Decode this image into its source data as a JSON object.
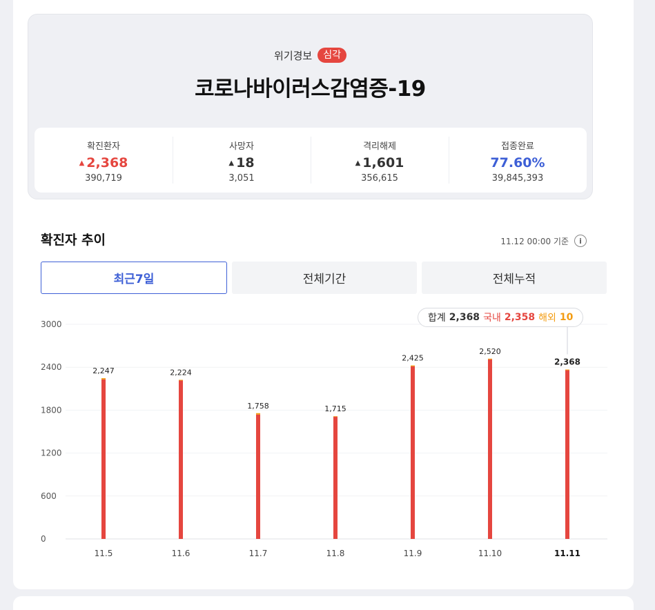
{
  "summary": {
    "alert_label": "위기경보",
    "alert_level": "심각",
    "title": "코로나바이러스감염증-19",
    "stats": [
      {
        "label": "확진환자",
        "delta": "2,368",
        "total": "390,719",
        "color": "#e5463f"
      },
      {
        "label": "사망자",
        "delta": "18",
        "total": "3,051",
        "color": "#333333"
      },
      {
        "label": "격리해제",
        "delta": "1,601",
        "total": "356,615",
        "color": "#333333"
      },
      {
        "label": "접종완료",
        "delta": "77.60%",
        "total": "39,845,393",
        "color": "#3d5fd6"
      }
    ]
  },
  "trend": {
    "title": "확진자 추이",
    "basis": "11.12 00:00 기준",
    "tabs": [
      "최근7일",
      "전체기간",
      "전체누적"
    ],
    "active_tab": 0
  },
  "tooltip": {
    "sum_label": "합계",
    "sum_value": "2,368",
    "domestic_label": "국내",
    "domestic_value": "2,358",
    "overseas_label": "해외",
    "overseas_value": "10"
  },
  "chart_data": {
    "type": "bar",
    "stacked": true,
    "categories": [
      "11.5",
      "11.6",
      "11.7",
      "11.8",
      "11.9",
      "11.10",
      "11.11"
    ],
    "series": [
      {
        "name": "국내",
        "values": [
          2230,
          2214,
          1738,
          1707,
          2412,
          2509,
          2358
        ],
        "color": "#e5463f"
      },
      {
        "name": "해외",
        "values": [
          17,
          10,
          20,
          8,
          13,
          11,
          10
        ],
        "color": "#f39c12"
      }
    ],
    "totals": [
      2247,
      2224,
      1758,
      1715,
      2425,
      2520,
      2368
    ],
    "total_labels": [
      "2,247",
      "2,224",
      "1,758",
      "1,715",
      "2,425",
      "2,520",
      "2,368"
    ],
    "yticks": [
      0,
      600,
      1200,
      1800,
      2400,
      3000
    ],
    "ylim": [
      0,
      3000
    ],
    "highlight_index": 6,
    "grid": true
  }
}
